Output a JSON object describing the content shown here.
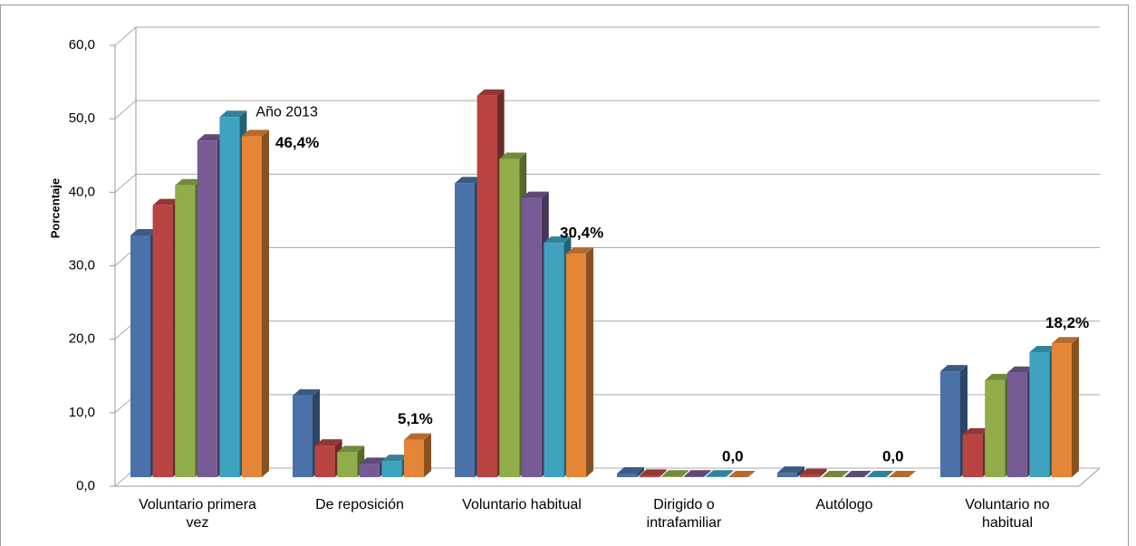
{
  "chart_data": {
    "type": "bar3d",
    "y_axis_label": "Porcentaje",
    "annotation": "Año 2013",
    "categories": [
      "Voluntario primera vez",
      "De reposición",
      "Voluntario habitual",
      "Dirigido o intrafamiliar",
      "Autólogo",
      "Voluntario no habitual"
    ],
    "series": [
      {
        "color": "#4a72a8",
        "values": [
          32.9,
          11.1,
          40.0,
          0.5,
          0.6,
          14.4
        ]
      },
      {
        "color": "#b94441",
        "values": [
          37.0,
          4.3,
          51.9,
          0.2,
          0.3,
          5.8
        ]
      },
      {
        "color": "#8fae4a",
        "values": [
          39.7,
          3.4,
          43.3,
          0.1,
          0.0,
          13.2
        ]
      },
      {
        "color": "#765b95",
        "values": [
          45.8,
          1.8,
          38.0,
          0.1,
          0.0,
          14.2
        ]
      },
      {
        "color": "#3fa3c0",
        "values": [
          49.0,
          2.2,
          31.9,
          0.1,
          0.0,
          17.0
        ]
      },
      {
        "color": "#e48537",
        "values": [
          46.4,
          5.1,
          30.4,
          0.0,
          0.0,
          18.2
        ],
        "value_labels": [
          "46,4%",
          "5,1%",
          "30,4%",
          "0,0",
          "0,0",
          "18,2%"
        ]
      }
    ],
    "ylim": [
      0,
      60
    ],
    "yticks": [
      {
        "value": 0,
        "label": "0,0"
      },
      {
        "value": 10,
        "label": "10,0"
      },
      {
        "value": 20,
        "label": "20,0"
      },
      {
        "value": 30,
        "label": "30,0"
      },
      {
        "value": 40,
        "label": "40,0"
      },
      {
        "value": 50,
        "label": "50,0"
      },
      {
        "value": 60,
        "label": "60,0"
      }
    ],
    "grid": true
  }
}
